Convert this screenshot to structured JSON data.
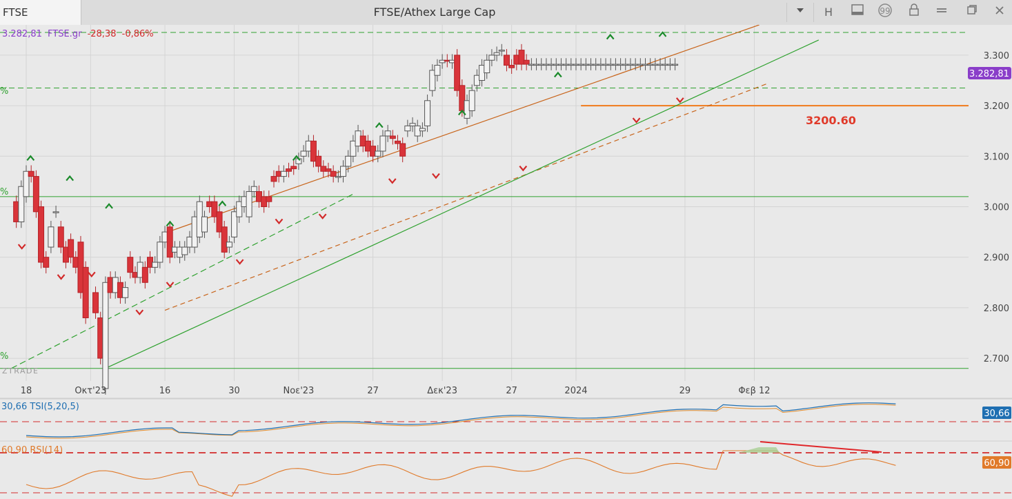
{
  "window": {
    "symbol_tab": "FTSE",
    "title": "FTSE/Athex Large Cap",
    "buttons": [
      "H"
    ]
  },
  "header_readout": {
    "price": "3.282,81",
    "symbol": "FTSE.gr",
    "change": "-28,38",
    "change_pct": "-0,86%"
  },
  "watermark": "ZTRADE",
  "annotation_level": "3200.60",
  "last_price_badge": "3.282,81",
  "fib_pct_marks": [
    "%",
    "%",
    "%",
    "%"
  ],
  "chart_data": [
    {
      "type": "candlestick",
      "title": "FTSE/Athex Large Cap",
      "ylim": [
        2655,
        3360
      ],
      "y_ticks": [
        "2.700",
        "2.800",
        "2.900",
        "3.000",
        "3.100",
        "3.200",
        "3.300"
      ],
      "y_tick_values": [
        2700,
        2800,
        2900,
        3000,
        3100,
        3200,
        3300
      ],
      "x_ticks": [
        "18",
        "Οκτ'23",
        "16",
        "30",
        "Νοε'23",
        "27",
        "Δεκ'23",
        "27",
        "2024",
        "29",
        "Φεβ 12"
      ],
      "x_tick_days": [
        0,
        13,
        28,
        42,
        55,
        70,
        84,
        98,
        111,
        133,
        147
      ],
      "day_index": [
        -2,
        -1,
        0,
        1,
        2,
        3,
        4,
        5,
        6,
        7,
        8,
        9,
        10,
        11,
        12,
        14,
        15,
        16,
        17,
        18,
        19,
        20,
        21,
        22,
        23,
        24,
        25,
        26,
        27,
        28,
        29,
        30,
        31,
        32,
        33,
        34,
        35,
        36,
        37,
        38,
        39,
        40,
        41,
        42,
        43,
        44,
        45,
        46,
        47,
        48,
        49,
        50,
        51,
        52,
        53,
        54,
        55,
        56,
        57,
        58,
        59,
        60,
        61,
        62,
        63,
        64,
        65,
        66,
        67,
        68,
        69,
        70,
        71,
        72,
        73,
        74,
        75,
        76,
        77,
        78,
        79,
        80,
        81,
        82,
        83,
        84,
        85,
        86,
        87,
        88,
        89,
        90,
        91,
        92,
        93,
        94,
        95,
        96,
        97,
        98,
        99,
        100,
        101,
        102,
        103,
        104,
        105,
        106,
        107,
        108,
        109,
        110,
        111,
        112,
        113,
        114,
        115,
        116,
        117,
        118,
        119,
        120,
        121,
        122,
        123,
        124,
        125,
        126,
        127,
        128,
        129,
        130,
        131
      ],
      "open": [
        3010,
        2970,
        3020,
        3070,
        3060,
        3000,
        2900,
        2920,
        2990,
        2960,
        2920,
        2935,
        2900,
        2930,
        2880,
        2830,
        2780,
        2640,
        2860,
        2830,
        2850,
        2820,
        2900,
        2870,
        2860,
        2880,
        2900,
        2880,
        2890,
        2930,
        2960,
        2910,
        2900,
        2905,
        2920,
        2920,
        2940,
        2950,
        3010,
        3010,
        2990,
        2960,
        2920,
        2940,
        2980,
        3000,
        2980,
        3030,
        3030,
        3020,
        3020,
        3060,
        3070,
        3060,
        3075,
        3080,
        3085,
        3100,
        3110,
        3130,
        3100,
        3080,
        3075,
        3070,
        3060,
        3060,
        3080,
        3100,
        3120,
        3140,
        3130,
        3120,
        3100,
        3110,
        3140,
        3140,
        3130,
        3125,
        3150,
        3160,
        3140,
        3150,
        3160,
        3230,
        3260,
        3285,
        3290,
        3285,
        3300,
        3240,
        3175,
        3190,
        3240,
        3250,
        3265,
        3290,
        3300,
        3310,
        3300,
        3280,
        3300,
        3310,
        3290,
        3282,
        3282,
        3282,
        3282,
        3282,
        3282,
        3282,
        3282,
        3282,
        3282,
        3282,
        3282,
        3282,
        3282,
        3282,
        3282,
        3282,
        3282,
        3282,
        3282,
        3282,
        3282,
        3282,
        3282,
        3282,
        3282,
        3282,
        3282,
        3282,
        3282
      ],
      "close": [
        2970,
        3040,
        3070,
        3060,
        2990,
        2890,
        2880,
        2960,
        2990,
        2920,
        2890,
        2900,
        2880,
        2830,
        2780,
        2790,
        2700,
        2850,
        2830,
        2860,
        2820,
        2840,
        2870,
        2860,
        2890,
        2850,
        2880,
        2890,
        2930,
        2950,
        2900,
        2920,
        2920,
        2920,
        2940,
        2980,
        3010,
        2980,
        3000,
        2980,
        2950,
        2910,
        2930,
        2990,
        3010,
        3020,
        3030,
        3040,
        3010,
        3000,
        3010,
        3050,
        3060,
        3070,
        3070,
        3075,
        3095,
        3110,
        3130,
        3090,
        3080,
        3070,
        3070,
        3060,
        3060,
        3080,
        3100,
        3130,
        3150,
        3120,
        3110,
        3100,
        3110,
        3140,
        3150,
        3135,
        3125,
        3100,
        3160,
        3165,
        3160,
        3155,
        3210,
        3270,
        3280,
        3290,
        3288,
        3290,
        3230,
        3190,
        3210,
        3230,
        3260,
        3280,
        3290,
        3300,
        3305,
        3310,
        3280,
        3275,
        3282,
        3282,
        3282,
        3282,
        3282,
        3282,
        3282,
        3282,
        3282,
        3282,
        3282,
        3282,
        3282,
        3282,
        3282,
        3282,
        3282,
        3282,
        3282,
        3282,
        3282,
        3282,
        3282,
        3282,
        3282,
        3282,
        3282,
        3282,
        3282,
        3282,
        3282,
        3282,
        3282
      ],
      "price_lines": [
        {
          "name": "horizontal-green-dash-top",
          "y": 3345
        },
        {
          "name": "horizontal-green-dash-mid",
          "y": 3235
        },
        {
          "name": "horizontal-green-solid",
          "y": 3020
        },
        {
          "name": "horizontal-green-solid-low",
          "y": 2680
        },
        {
          "name": "horizontal-orange-support",
          "y": 3200
        }
      ],
      "annotation": {
        "label": "3200.60",
        "value": 3200.6
      },
      "last_price": 3282.81
    },
    {
      "type": "line",
      "series": [
        {
          "name": "TSI(5,20,5)",
          "last": 30.66,
          "color": "#1f6fb2"
        }
      ],
      "label": "30,66 TSI(5,20,5)",
      "badge": "30,66",
      "signal_line_color": "#e08a2a"
    },
    {
      "type": "line",
      "series": [
        {
          "name": "RSI(14)",
          "last": 60.9,
          "color": "#e07a2a"
        }
      ],
      "label": "60,90 RSI(14)",
      "badge": "60,90"
    }
  ]
}
